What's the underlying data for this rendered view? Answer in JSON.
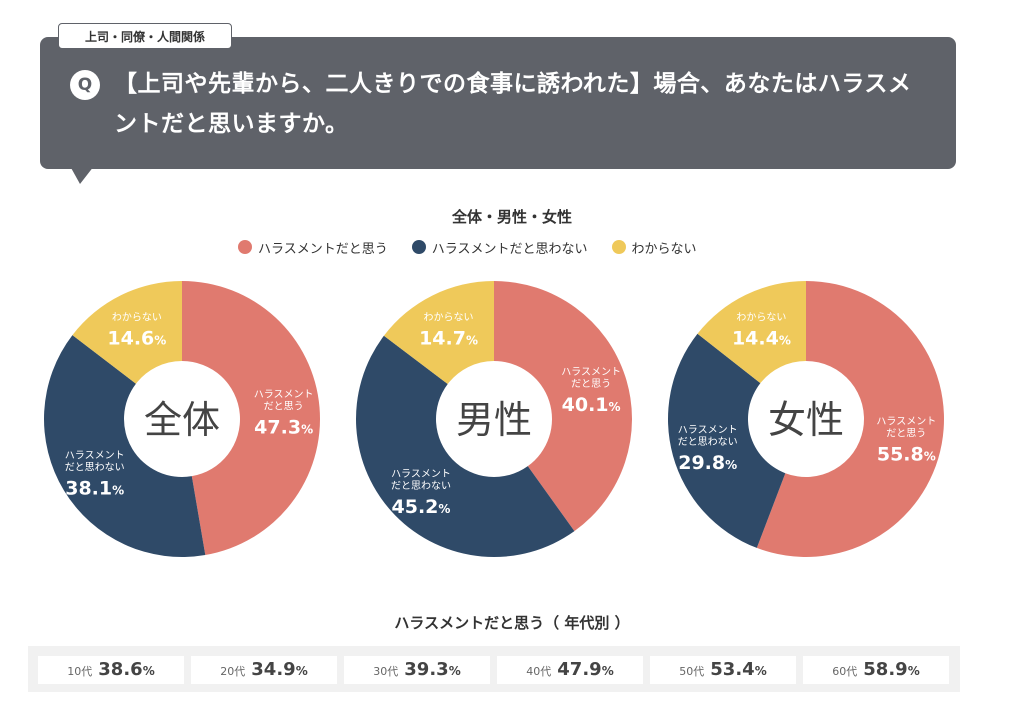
{
  "header": {
    "tag_label": "上司・同僚・人間関係",
    "q_badge": "Q",
    "question": "【上司や先輩から、二人きりでの食事に誘われた】場合、あなたはハラスメントだと思いますか。"
  },
  "colors": {
    "harassment": "#e07a6f",
    "not_harassment": "#2f4a68",
    "unknown": "#efc95a",
    "header_bg": "#5f6269"
  },
  "chart_data": [
    {
      "type": "pie",
      "title": "全体・男性・女性",
      "legend": [
        "ハラスメントだと思う",
        "ハラスメントだと思わない",
        "わからない"
      ],
      "groups": [
        {
          "center_label": "全体",
          "values": [
            47.3,
            38.1,
            14.6
          ]
        },
        {
          "center_label": "男性",
          "values": [
            40.1,
            45.2,
            14.7
          ]
        },
        {
          "center_label": "女性",
          "values": [
            55.8,
            29.8,
            14.4
          ]
        }
      ],
      "slice_labels": [
        "ハラスメント\nだと思う",
        "ハラスメント\nだと思わない",
        "わからない"
      ]
    },
    {
      "type": "table",
      "title": "ハラスメントだと思う（ 年代別 ）",
      "categories": [
        "10代",
        "20代",
        "30代",
        "40代",
        "50代",
        "60代"
      ],
      "values": [
        38.6,
        34.9,
        39.3,
        47.9,
        53.4,
        58.9
      ]
    }
  ]
}
